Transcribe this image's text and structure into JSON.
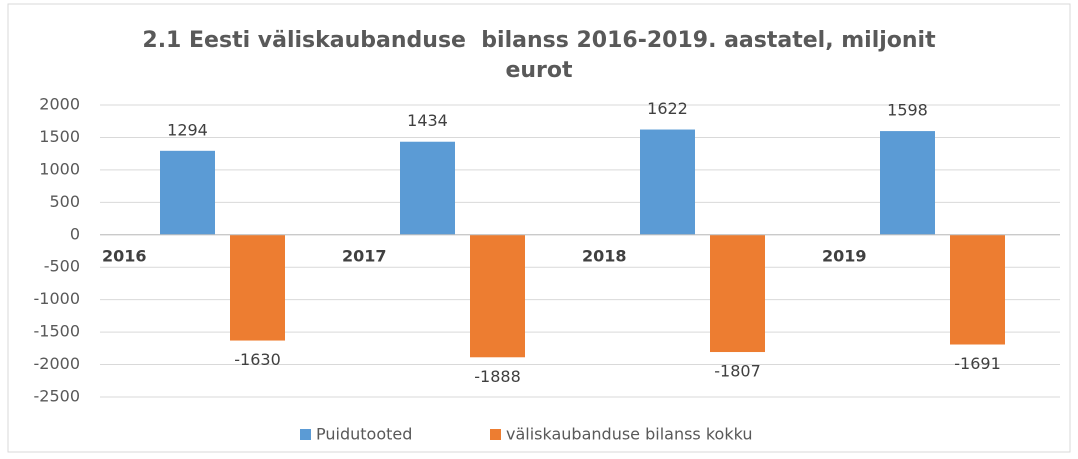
{
  "chart_data": {
    "type": "bar",
    "title": "2.1 Eesti väliskaubanduse  bilanss 2016-2019. aastatel, miljonit eurot",
    "categories": [
      "2016",
      "2017",
      "2018",
      "2019"
    ],
    "series": [
      {
        "name": "Puidutooted",
        "color": "#5b9bd5",
        "values": [
          1294,
          1434,
          1622,
          1598
        ]
      },
      {
        "name": "väliskaubanduse bilanss kokku",
        "color": "#ed7d31",
        "values": [
          -1630,
          -1888,
          -1807,
          -1691
        ]
      }
    ],
    "ylim": [
      -2500,
      2000
    ],
    "yticks": [
      -2500,
      -2000,
      -1500,
      -1000,
      -500,
      0,
      500,
      1000,
      1500,
      2000
    ],
    "grid": true,
    "legend": "bottom"
  }
}
